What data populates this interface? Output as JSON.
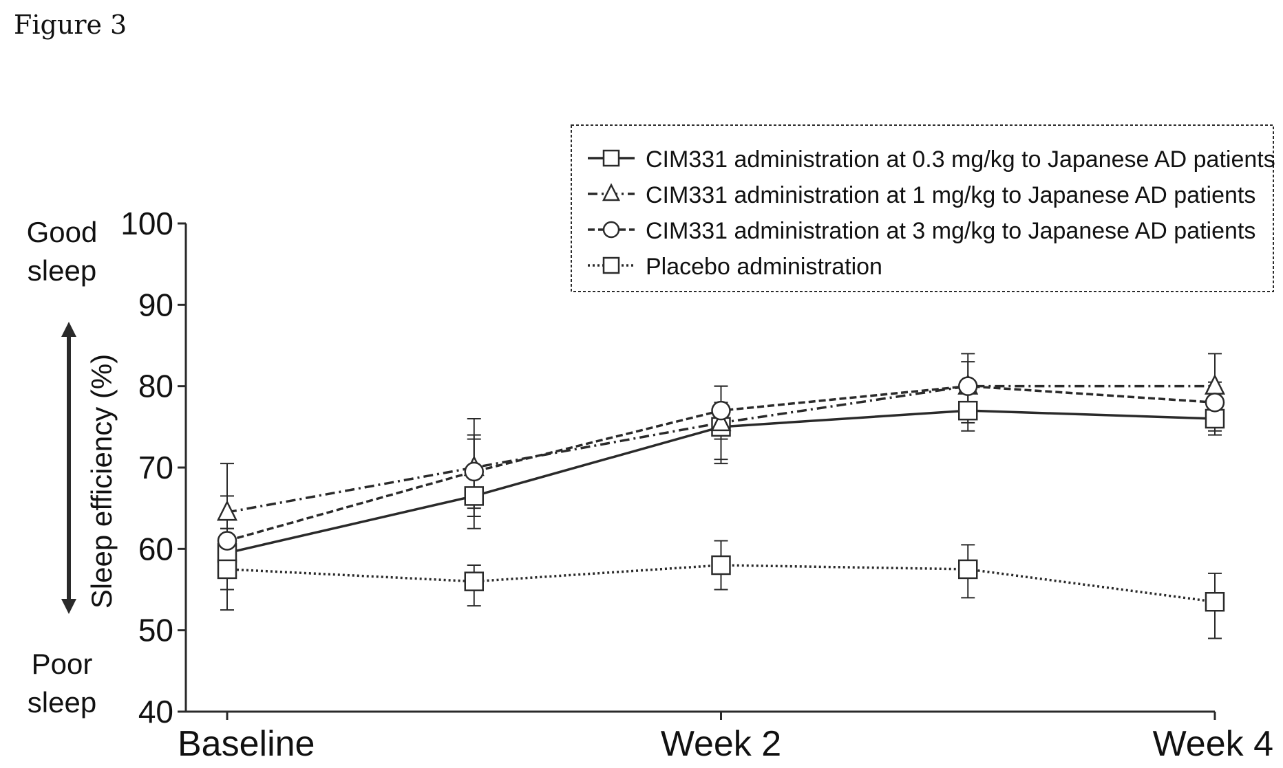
{
  "figure_label": "Figure 3",
  "side_labels": {
    "good": [
      "Good",
      "sleep"
    ],
    "poor": [
      "Poor",
      "sleep"
    ]
  },
  "chart_data": {
    "type": "line",
    "ylabel": "Sleep efficiency (%)",
    "xlabel": "",
    "title": "",
    "ylim": [
      40,
      100
    ],
    "yticks": [
      40,
      50,
      60,
      70,
      80,
      90,
      100
    ],
    "x_range": [
      0,
      4
    ],
    "xticks": [
      {
        "x": 0,
        "label": "Baseline"
      },
      {
        "x": 2,
        "label": "Week 2"
      },
      {
        "x": 4,
        "label": "Week 4"
      }
    ],
    "x": [
      0,
      1,
      2,
      3,
      4
    ],
    "grid": false,
    "legend_position": "top-right",
    "series": [
      {
        "name": "CIM331 administration at 0.3 mg/kg to Japanese AD patients",
        "marker": "square",
        "line_style": "solid",
        "values": [
          59.5,
          66.5,
          75,
          77,
          76
        ],
        "error_low": [
          55,
          62.5,
          70.5,
          74.5,
          74
        ],
        "error_high": [
          62.5,
          73.5,
          78,
          80,
          78
        ]
      },
      {
        "name": "CIM331 administration at 1 mg/kg to Japanese AD patients",
        "marker": "triangle",
        "line_style": "dashdot",
        "values": [
          64.5,
          70,
          75.5,
          80,
          80
        ],
        "error_low": [
          57,
          64,
          71,
          75.5,
          74.5
        ],
        "error_high": [
          70.5,
          76,
          80,
          84,
          84
        ]
      },
      {
        "name": "CIM331 administration at 3 mg/kg to Japanese AD patients",
        "marker": "circle",
        "line_style": "dashed",
        "values": [
          61,
          69.5,
          77,
          80,
          78
        ],
        "error_low": [
          57,
          65,
          73.5,
          76,
          75
        ],
        "error_high": [
          66.5,
          74,
          80,
          83,
          80.5
        ]
      },
      {
        "name": "Placebo administration",
        "marker": "square",
        "line_style": "dotted",
        "values": [
          57.5,
          56,
          58,
          57.5,
          53.5
        ],
        "error_low": [
          52.5,
          53,
          55,
          54,
          49
        ],
        "error_high": [
          62.5,
          58,
          61,
          60.5,
          57
        ]
      }
    ]
  }
}
